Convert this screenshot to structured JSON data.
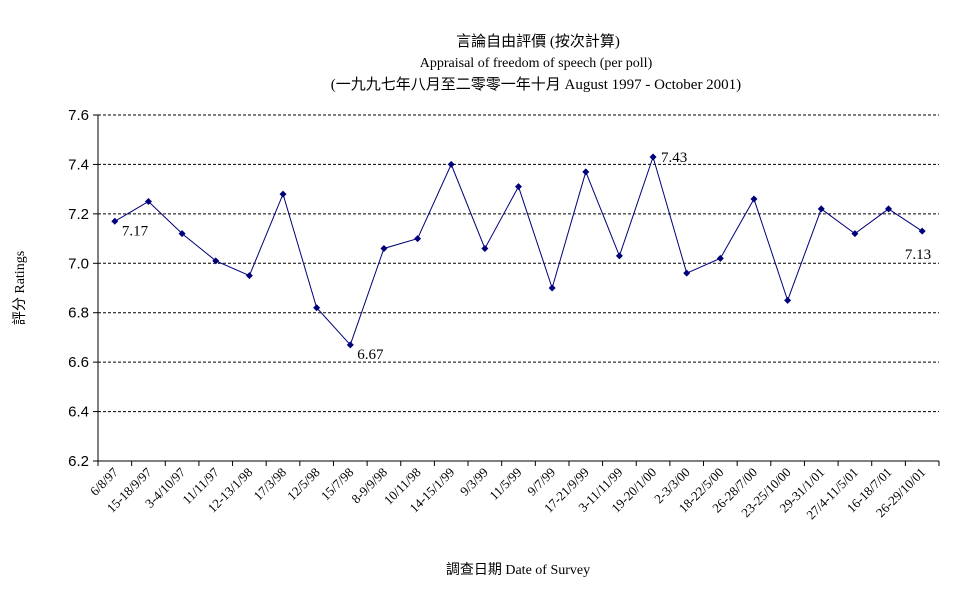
{
  "chart_data": {
    "type": "line",
    "title": "言論自由評價 (按次計算)",
    "subtitle": "Appraisal of  freedom of speech (per poll)",
    "subtitle2": "(一九九七年八月至二零零一年十月 August 1997 - October 2001)",
    "xlabel": "調查日期 Date of Survey",
    "ylabel": "評分 Ratings",
    "ylim": [
      6.2,
      7.6
    ],
    "yticks": [
      "6.2",
      "6.4",
      "6.6",
      "6.8",
      "7.0",
      "7.2",
      "7.4",
      "7.6"
    ],
    "grid": true,
    "categories": [
      "6/8/97",
      "15-18/9/97",
      "3-4/10/97",
      "11/11/97",
      "12-13/1/98",
      "17/3/98",
      "12/5/98",
      "15/7/98",
      "8-9/9/98",
      "10/11/98",
      "14-15/1/99",
      "9/3/99",
      "11/5/99",
      "9/7/99",
      "17-21/9/99",
      "3-11/11/99",
      "19-20/1/00",
      "2-3/3/00",
      "18-22/5/00",
      "26-28/7/00",
      "23-25/10/00",
      "29-31/1/01",
      "27/4-11/5/01",
      "16-18/7/01",
      "26-29/10/01"
    ],
    "values": [
      7.17,
      7.25,
      7.12,
      7.01,
      6.95,
      7.28,
      6.82,
      6.67,
      7.06,
      7.1,
      7.4,
      7.06,
      7.31,
      6.9,
      7.37,
      7.03,
      7.43,
      6.96,
      7.02,
      7.26,
      6.85,
      7.22,
      7.12,
      7.22,
      7.13
    ],
    "annotations": [
      {
        "index": 0,
        "text": "7.17"
      },
      {
        "index": 7,
        "text": "6.67"
      },
      {
        "index": 16,
        "text": "7.43"
      },
      {
        "index": 24,
        "text": "7.13"
      }
    ],
    "line_color": "#00007a",
    "marker_color": "#00007a",
    "grid_color": "#000000"
  }
}
